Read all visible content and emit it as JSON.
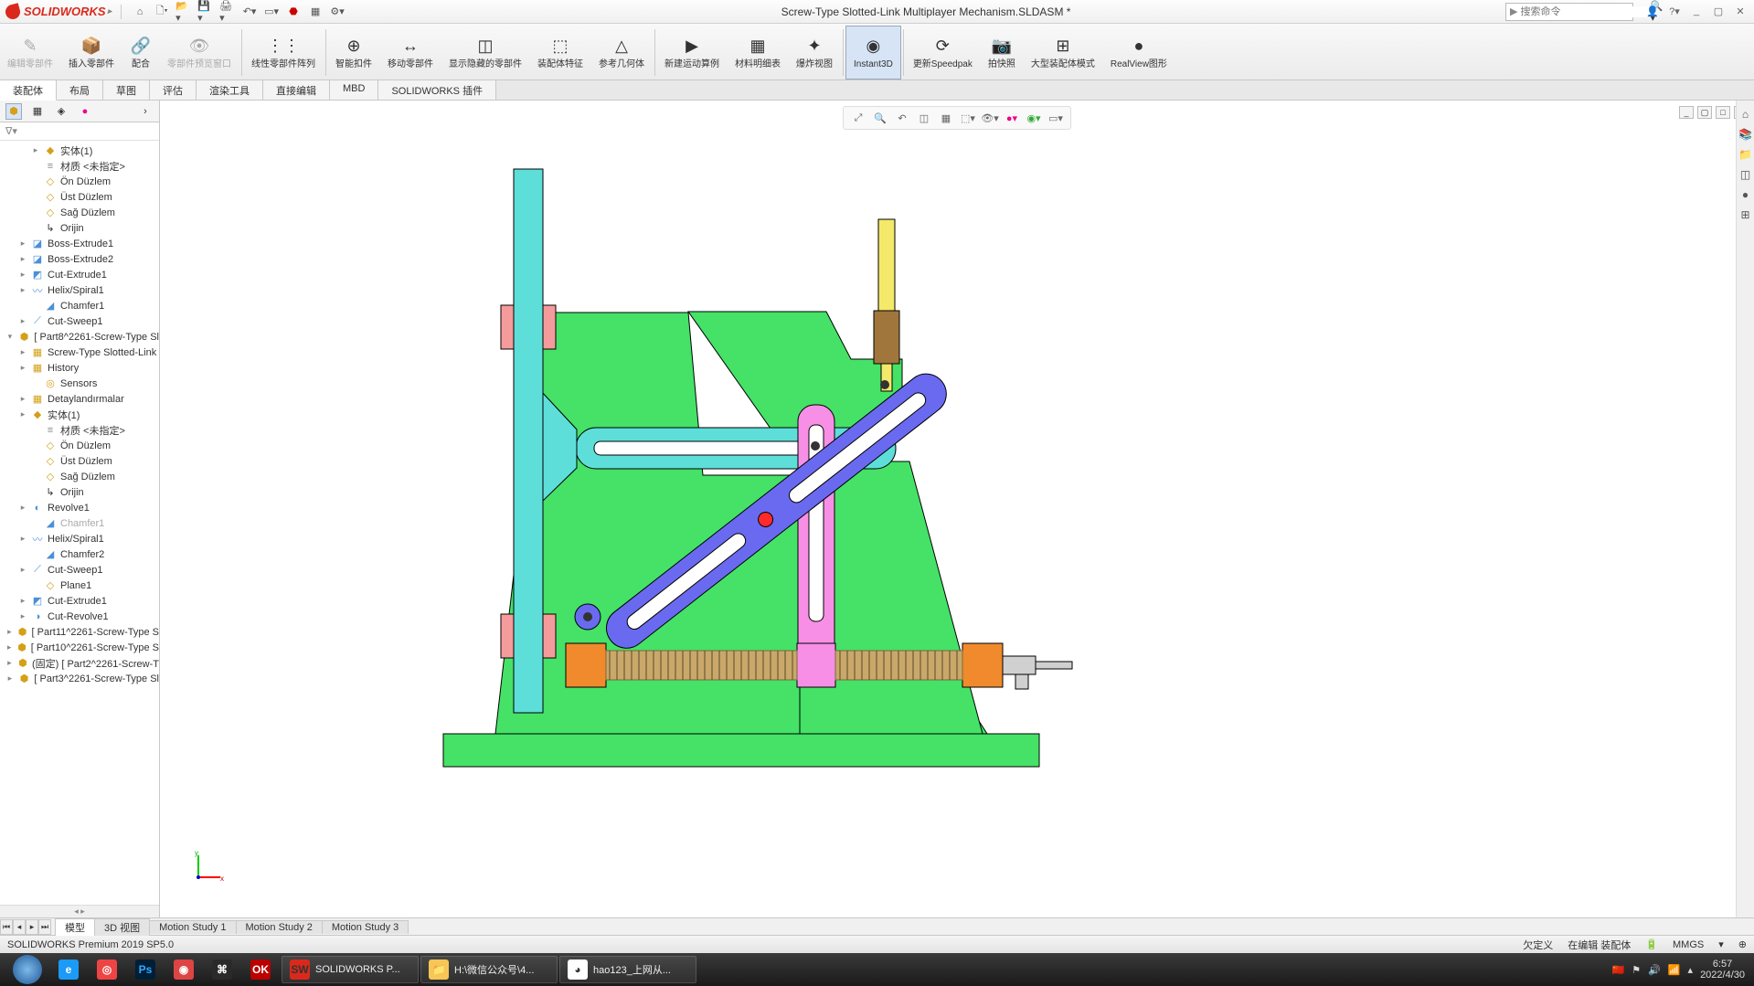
{
  "app": {
    "name": "SOLIDWORKS",
    "title": "Screw-Type Slotted-Link Multiplayer Mechanism.SLDASM *"
  },
  "search": {
    "placeholder": "搜索命令"
  },
  "ribbon": [
    {
      "label": "编辑零部件",
      "icon": "✎",
      "disabled": true
    },
    {
      "label": "插入零部件",
      "icon": "📦"
    },
    {
      "label": "配合",
      "icon": "🔗"
    },
    {
      "label": "零部件预览窗口",
      "icon": "👁",
      "disabled": true
    },
    {
      "label": "线性零部件阵列",
      "icon": "⋮⋮"
    },
    {
      "label": "智能扣件",
      "icon": "⊕"
    },
    {
      "label": "移动零部件",
      "icon": "↔"
    },
    {
      "label": "显示隐藏的零部件",
      "icon": "◫"
    },
    {
      "label": "装配体特征",
      "icon": "⬚"
    },
    {
      "label": "参考几何体",
      "icon": "△"
    },
    {
      "label": "新建运动算例",
      "icon": "▶"
    },
    {
      "label": "材料明细表",
      "icon": "▦"
    },
    {
      "label": "爆炸视图",
      "icon": "✦"
    },
    {
      "label": "Instant3D",
      "icon": "◉",
      "active": true
    },
    {
      "label": "更新Speedpak",
      "icon": "⟳"
    },
    {
      "label": "拍快照",
      "icon": "📷"
    },
    {
      "label": "大型装配体模式",
      "icon": "⊞"
    },
    {
      "label": "RealView图形",
      "icon": "●"
    }
  ],
  "cmdTabs": [
    "装配体",
    "布局",
    "草图",
    "评估",
    "渲染工具",
    "直接编辑",
    "MBD",
    "SOLIDWORKS 插件"
  ],
  "cmdTabActive": 0,
  "tree": [
    {
      "d": 2,
      "e": "▸",
      "i": "part-ico",
      "t": "◆",
      "l": "实体(1)"
    },
    {
      "d": 2,
      "e": "",
      "i": "mat-ico",
      "t": "≡",
      "l": "材质 <未指定>"
    },
    {
      "d": 2,
      "e": "",
      "i": "plane-ico",
      "t": "◇",
      "l": "Ön Düzlem"
    },
    {
      "d": 2,
      "e": "",
      "i": "plane-ico",
      "t": "◇",
      "l": "Üst Düzlem"
    },
    {
      "d": 2,
      "e": "",
      "i": "plane-ico",
      "t": "◇",
      "l": "Sağ Düzlem"
    },
    {
      "d": 2,
      "e": "",
      "i": "origin-ico",
      "t": "↳",
      "l": "Orijin"
    },
    {
      "d": 1,
      "e": "▸",
      "i": "feat-ico",
      "t": "◪",
      "l": "Boss-Extrude1"
    },
    {
      "d": 1,
      "e": "▸",
      "i": "feat-ico",
      "t": "◪",
      "l": "Boss-Extrude2"
    },
    {
      "d": 1,
      "e": "▸",
      "i": "feat-ico",
      "t": "◩",
      "l": "Cut-Extrude1"
    },
    {
      "d": 1,
      "e": "▸",
      "i": "feat-ico",
      "t": "〰",
      "l": "Helix/Spiral1"
    },
    {
      "d": 2,
      "e": "",
      "i": "feat-ico",
      "t": "◢",
      "l": "Chamfer1"
    },
    {
      "d": 1,
      "e": "▸",
      "i": "feat-ico",
      "t": "⟋",
      "l": "Cut-Sweep1"
    },
    {
      "d": 0,
      "e": "▾",
      "i": "part-ico",
      "t": "⬢",
      "l": "[ Part8^2261-Screw-Type Sl"
    },
    {
      "d": 1,
      "e": "▸",
      "i": "part-ico",
      "t": "▦",
      "l": "Screw-Type Slotted-Link"
    },
    {
      "d": 1,
      "e": "▸",
      "i": "part-ico",
      "t": "▦",
      "l": "History"
    },
    {
      "d": 2,
      "e": "",
      "i": "part-ico",
      "t": "◎",
      "l": "Sensors"
    },
    {
      "d": 1,
      "e": "▸",
      "i": "part-ico",
      "t": "▦",
      "l": "Detaylandırmalar"
    },
    {
      "d": 1,
      "e": "▸",
      "i": "part-ico",
      "t": "◆",
      "l": "实体(1)"
    },
    {
      "d": 2,
      "e": "",
      "i": "mat-ico",
      "t": "≡",
      "l": "材质 <未指定>"
    },
    {
      "d": 2,
      "e": "",
      "i": "plane-ico",
      "t": "◇",
      "l": "Ön Düzlem"
    },
    {
      "d": 2,
      "e": "",
      "i": "plane-ico",
      "t": "◇",
      "l": "Üst Düzlem"
    },
    {
      "d": 2,
      "e": "",
      "i": "plane-ico",
      "t": "◇",
      "l": "Sağ Düzlem"
    },
    {
      "d": 2,
      "e": "",
      "i": "origin-ico",
      "t": "↳",
      "l": "Orijin"
    },
    {
      "d": 1,
      "e": "▸",
      "i": "feat-ico",
      "t": "◐",
      "l": "Revolve1"
    },
    {
      "d": 2,
      "e": "",
      "i": "feat-ico",
      "t": "◢",
      "l": "Chamfer1",
      "dim": true
    },
    {
      "d": 1,
      "e": "▸",
      "i": "feat-ico",
      "t": "〰",
      "l": "Helix/Spiral1"
    },
    {
      "d": 2,
      "e": "",
      "i": "feat-ico",
      "t": "◢",
      "l": "Chamfer2"
    },
    {
      "d": 1,
      "e": "▸",
      "i": "feat-ico",
      "t": "⟋",
      "l": "Cut-Sweep1"
    },
    {
      "d": 2,
      "e": "",
      "i": "plane-ico",
      "t": "◇",
      "l": "Plane1"
    },
    {
      "d": 1,
      "e": "▸",
      "i": "feat-ico",
      "t": "◩",
      "l": "Cut-Extrude1"
    },
    {
      "d": 1,
      "e": "▸",
      "i": "feat-ico",
      "t": "◑",
      "l": "Cut-Revolve1"
    },
    {
      "d": 0,
      "e": "▸",
      "i": "part-ico",
      "t": "⬢",
      "l": "[ Part11^2261-Screw-Type S"
    },
    {
      "d": 0,
      "e": "▸",
      "i": "part-ico",
      "t": "⬢",
      "l": "[ Part10^2261-Screw-Type S"
    },
    {
      "d": 0,
      "e": "▸",
      "i": "part-ico",
      "t": "⬢",
      "l": "(固定) [ Part2^2261-Screw-T"
    },
    {
      "d": 0,
      "e": "▸",
      "i": "part-ico",
      "t": "⬢",
      "l": "[ Part3^2261-Screw-Type Sl"
    }
  ],
  "btmTabs": [
    "模型",
    "3D 视图",
    "Motion Study 1",
    "Motion Study 2",
    "Motion Study 3"
  ],
  "btmActive": 0,
  "status": {
    "left": "SOLIDWORKS Premium 2019 SP5.0",
    "r1": "欠定义",
    "r2": "在编辑 装配体",
    "r3": "MMGS"
  },
  "taskbar": {
    "apps": [
      {
        "bg": "#1b9af7",
        "t": "e"
      },
      {
        "bg": "#e44",
        "t": "◎"
      },
      {
        "bg": "#001e36",
        "t": "Ps",
        "c": "#31a8ff"
      },
      {
        "bg": "#d44",
        "t": "◉"
      },
      {
        "bg": "#2a2a2a",
        "t": "⌘"
      },
      {
        "bg": "#b00",
        "t": "OK",
        "c": "#fff"
      }
    ],
    "open": [
      {
        "bg": "#da291c",
        "t": "SW",
        "label": "SOLIDWORKS P..."
      },
      {
        "bg": "#f7c657",
        "t": "📁",
        "label": "H:\\微信公众号\\4..."
      },
      {
        "bg": "#fff",
        "t": "◕",
        "label": "hao123_上网从..."
      }
    ],
    "time": "6:57",
    "date": "2022/4/30"
  },
  "colors": {
    "base": "#45e267",
    "baseStroke": "#000",
    "cyan": "#5eded9",
    "cyanStroke": "#000",
    "pink": "#f78fe6",
    "pinkStroke": "#000",
    "blue": "#6a6af0",
    "blueStroke": "#000",
    "yellow": "#f4e96a",
    "brown": "#a0763c",
    "orange": "#f08a2c",
    "brass": "#c9a86a",
    "salmon": "#f59b9b",
    "red": "#ff2a2a",
    "grey": "#d0d0d0"
  }
}
